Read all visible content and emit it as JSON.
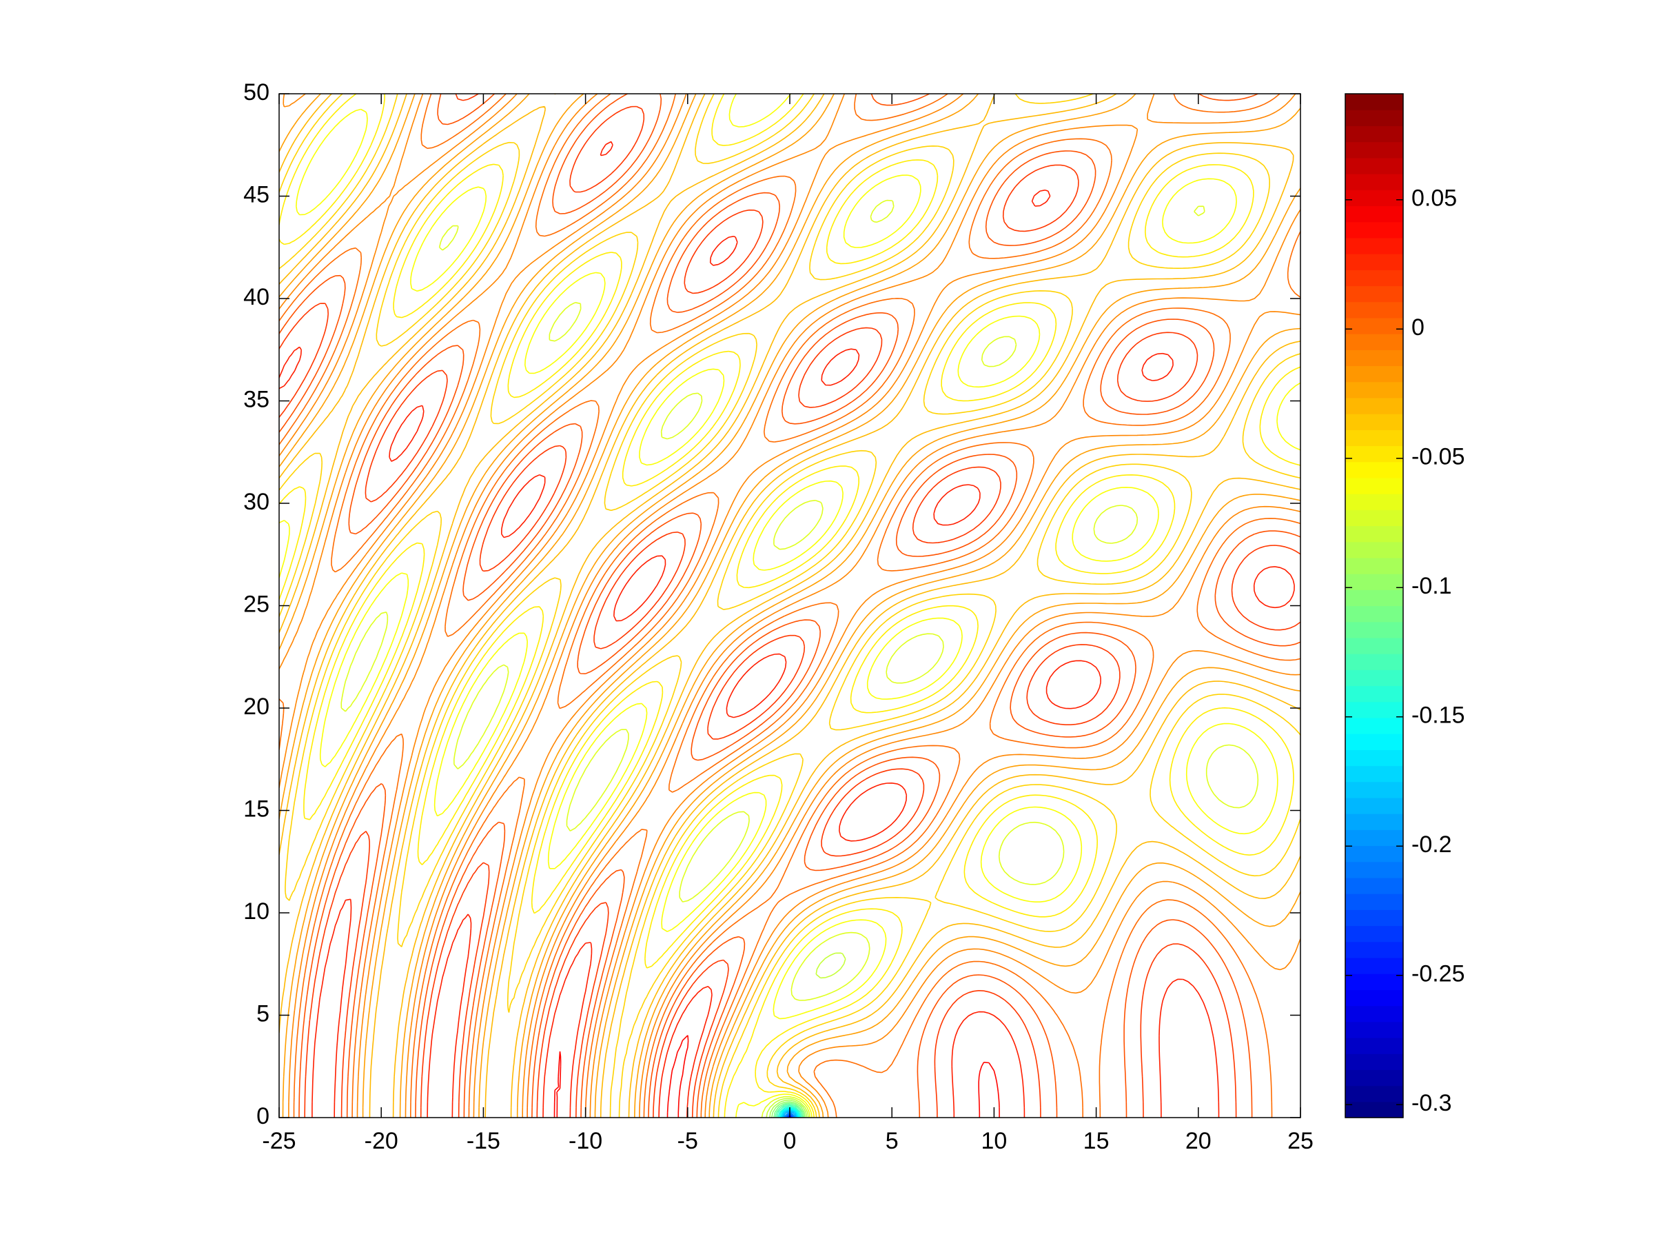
{
  "chart_data": {
    "type": "contour",
    "xlim": [
      -25,
      25
    ],
    "xticks": [
      -25,
      -20,
      -15,
      -10,
      -5,
      0,
      5,
      10,
      15,
      20,
      25
    ],
    "ylim": [
      0,
      50
    ],
    "yticks": [
      0,
      5,
      10,
      15,
      20,
      25,
      30,
      35,
      40,
      45,
      50
    ],
    "levels": [
      -0.3,
      -0.29,
      -0.28,
      -0.27,
      -0.26,
      -0.25,
      -0.24,
      -0.23,
      -0.22,
      -0.21,
      -0.2,
      -0.19,
      -0.18,
      -0.17,
      -0.16,
      -0.15,
      -0.14,
      -0.13,
      -0.12,
      -0.11,
      -0.1,
      -0.09,
      -0.08,
      -0.07,
      -0.06,
      -0.05,
      -0.04,
      -0.03,
      -0.02,
      -0.01,
      0,
      0.01,
      0.02,
      0.03,
      0.04,
      0.05,
      0.06,
      0.07,
      0.08
    ],
    "colormap": "jet",
    "clim": [
      -0.305,
      0.091
    ],
    "cticks": [
      -0.3,
      -0.25,
      -0.2,
      -0.15,
      -0.1,
      -0.05,
      0,
      0.05
    ]
  }
}
